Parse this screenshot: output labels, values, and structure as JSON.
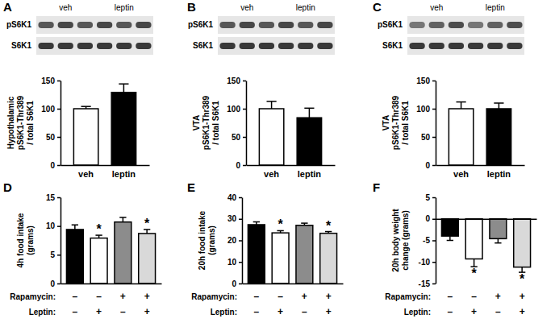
{
  "chart_data": [
    {
      "type": "bar",
      "panel": "A",
      "blot": {
        "rows": [
          "pS6K1",
          "S6K1"
        ],
        "lanes": [
          "veh",
          "leptin"
        ]
      },
      "ylabel": [
        "Hypothalamic",
        "pS6K1-Thr389",
        "/ total S6K1"
      ],
      "categories": [
        "veh",
        "leptin"
      ],
      "values": [
        100,
        129
      ],
      "errors": [
        4,
        15
      ],
      "colors": [
        "#ffffff",
        "#000000"
      ],
      "ylim": [
        0,
        150
      ],
      "yticks": [
        0,
        50,
        100,
        150
      ]
    },
    {
      "type": "bar",
      "panel": "B",
      "blot": {
        "rows": [
          "pS6K1",
          "S6K1"
        ],
        "lanes": [
          "veh",
          "leptin"
        ]
      },
      "ylabel": [
        "VTA",
        "pS6K1-Thr389",
        "/ total S6K1"
      ],
      "categories": [
        "veh",
        "leptin"
      ],
      "values": [
        100,
        84
      ],
      "errors": [
        13,
        17
      ],
      "colors": [
        "#ffffff",
        "#000000"
      ],
      "ylim": [
        0,
        150
      ],
      "yticks": [
        0,
        50,
        100,
        150
      ]
    },
    {
      "type": "bar",
      "panel": "C",
      "blot": {
        "rows": [
          "pS6K1",
          "S6K1"
        ],
        "lanes": [
          "veh",
          "leptin"
        ]
      },
      "ylabel": [
        "VTA",
        "pS6K1-Thr389",
        "/ total S6K1"
      ],
      "categories": [
        "veh",
        "leptin"
      ],
      "values": [
        100,
        100
      ],
      "errors": [
        12,
        10
      ],
      "colors": [
        "#ffffff",
        "#000000"
      ],
      "ylim": [
        0,
        150
      ],
      "yticks": [
        0,
        50,
        100,
        150
      ]
    },
    {
      "type": "bar",
      "panel": "D",
      "ylabel": [
        "4h food intake",
        "(grams)"
      ],
      "categories": [
        null,
        null,
        null,
        null
      ],
      "values": [
        9.4,
        7.9,
        10.7,
        8.7
      ],
      "errors": [
        0.8,
        0.5,
        0.8,
        0.7
      ],
      "colors": [
        "#000000",
        "#ffffff",
        "#8c8c8c",
        "#d9d9d9"
      ],
      "annotations": [
        {
          "text": "*",
          "category": 1
        },
        {
          "text": "*",
          "category": 3
        }
      ],
      "conditions": [
        {
          "label": "Rapamycin:",
          "values": [
            "–",
            "–",
            "+",
            "+"
          ]
        },
        {
          "label": "Leptin:",
          "values": [
            "–",
            "+",
            "–",
            "+"
          ]
        }
      ],
      "ylim": [
        0,
        15
      ],
      "yticks": [
        0,
        5,
        10,
        15
      ]
    },
    {
      "type": "bar",
      "panel": "E",
      "ylabel": [
        "20h food intake",
        "(grams)"
      ],
      "categories": [
        null,
        null,
        null,
        null
      ],
      "values": [
        27.3,
        23.5,
        27.0,
        23.3
      ],
      "errors": [
        1.3,
        1.0,
        1.0,
        0.8
      ],
      "colors": [
        "#000000",
        "#ffffff",
        "#8c8c8c",
        "#d9d9d9"
      ],
      "annotations": [
        {
          "text": "*",
          "category": 1
        },
        {
          "text": "*",
          "category": 3
        }
      ],
      "conditions": [
        {
          "label": "Rapamycin:",
          "values": [
            "–",
            "–",
            "+",
            "+"
          ]
        },
        {
          "label": "Leptin:",
          "values": [
            "–",
            "+",
            "–",
            "+"
          ]
        }
      ],
      "ylim": [
        0,
        40
      ],
      "yticks": [
        0,
        10,
        20,
        30,
        40
      ]
    },
    {
      "type": "bar",
      "panel": "F",
      "ylabel": [
        "20h body weight",
        "change (grams)"
      ],
      "categories": [
        null,
        null,
        null,
        null
      ],
      "values": [
        -4.0,
        -9.3,
        -4.6,
        -11.2
      ],
      "errors": [
        1.0,
        1.8,
        1.0,
        1.2
      ],
      "colors": [
        "#000000",
        "#ffffff",
        "#8c8c8c",
        "#d9d9d9"
      ],
      "annotations": [
        {
          "text": "*",
          "category": 1
        },
        {
          "text": "*",
          "category": 3
        }
      ],
      "conditions": [
        {
          "label": "Rapamycin:",
          "values": [
            "–",
            "–",
            "+",
            "+"
          ]
        },
        {
          "label": "Leptin:",
          "values": [
            "–",
            "+",
            "–",
            "+"
          ]
        }
      ],
      "ylim": [
        -15,
        5
      ],
      "yticks": [
        -15,
        -10,
        -5,
        0,
        5
      ]
    }
  ]
}
